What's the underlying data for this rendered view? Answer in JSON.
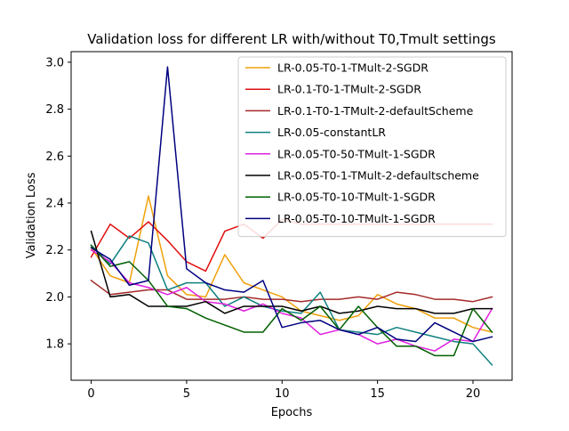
{
  "chart_data": {
    "type": "line",
    "title": "Validation loss for different LR with/without T0,Tmult settings",
    "xlabel": "Epochs",
    "ylabel": "Validation Loss",
    "xlim": [
      -1.05,
      22.05
    ],
    "ylim": [
      1.645,
      3.045
    ],
    "xticks": [
      0,
      5,
      10,
      15,
      20
    ],
    "xtick_labels": [
      "0",
      "5",
      "10",
      "15",
      "20"
    ],
    "yticks": [
      1.8,
      2.0,
      2.2,
      2.4,
      2.6,
      2.8,
      3.0
    ],
    "ytick_labels": [
      "1.8",
      "2.0",
      "2.2",
      "2.4",
      "2.6",
      "2.8",
      "3.0"
    ],
    "grid": false,
    "legend_position": "top-right",
    "x": [
      0,
      1,
      2,
      3,
      4,
      5,
      6,
      7,
      8,
      9,
      10,
      11,
      12,
      13,
      14,
      15,
      16,
      17,
      18,
      19,
      20,
      21
    ],
    "series": [
      {
        "name": "LR-0.05-T0-1-TMult-2-SGDR",
        "color": "#f0a00a",
        "values": [
          2.21,
          2.09,
          2.06,
          2.43,
          2.09,
          2.01,
          2.0,
          2.18,
          2.06,
          2.03,
          2.0,
          1.94,
          1.92,
          1.9,
          1.92,
          2.01,
          1.97,
          1.95,
          1.91,
          1.91,
          1.87,
          1.85
        ]
      },
      {
        "name": "LR-0.1-T0-1-TMult-2-SGDR",
        "color": "#e01010",
        "values": [
          2.17,
          2.31,
          2.25,
          2.32,
          2.24,
          2.15,
          2.11,
          2.28,
          2.31,
          2.25,
          2.33,
          2.31,
          2.31,
          2.31,
          2.31,
          2.31,
          2.31,
          2.31,
          2.31,
          2.31,
          2.31,
          2.31
        ]
      },
      {
        "name": "LR-0.1-T0-1-TMult-2-defaultScheme",
        "color": "#a52a2a",
        "values": [
          2.07,
          2.01,
          2.02,
          2.03,
          2.03,
          1.99,
          1.99,
          1.99,
          2.0,
          1.99,
          1.99,
          1.98,
          1.99,
          1.99,
          2.0,
          1.99,
          2.02,
          2.01,
          1.99,
          1.99,
          1.98,
          2.0
        ]
      },
      {
        "name": "LR-0.05-constantLR",
        "color": "#108080",
        "values": [
          2.22,
          2.14,
          2.26,
          2.23,
          2.03,
          2.06,
          2.06,
          1.96,
          2.0,
          1.96,
          1.94,
          1.93,
          2.02,
          1.86,
          1.85,
          1.84,
          1.87,
          1.85,
          1.83,
          1.81,
          1.8,
          1.71
        ]
      },
      {
        "name": "LR-0.05-T0-50-TMult-1-SGDR",
        "color": "#e020e0",
        "values": [
          2.2,
          2.15,
          2.06,
          2.04,
          2.01,
          2.04,
          1.98,
          1.97,
          1.94,
          1.97,
          1.93,
          1.91,
          1.84,
          1.86,
          1.84,
          1.8,
          1.82,
          1.79,
          1.77,
          1.82,
          1.81,
          1.95
        ]
      },
      {
        "name": "LR-0.05-T0-1-TMult-2-defaultscheme",
        "color": "#000000",
        "values": [
          2.28,
          2.0,
          2.01,
          1.96,
          1.96,
          1.96,
          1.98,
          1.93,
          1.96,
          1.96,
          1.96,
          1.94,
          1.96,
          1.93,
          1.94,
          1.96,
          1.95,
          1.95,
          1.93,
          1.93,
          1.95,
          1.95
        ]
      },
      {
        "name": "LR-0.05-T0-10-TMult-1-SGDR",
        "color": "#006000",
        "values": [
          2.22,
          2.13,
          2.15,
          2.07,
          1.96,
          1.95,
          1.91,
          1.88,
          1.85,
          1.85,
          1.95,
          1.9,
          1.96,
          1.86,
          1.96,
          1.87,
          1.79,
          1.79,
          1.75,
          1.75,
          1.95,
          1.85
        ]
      },
      {
        "name": "LR-0.05-T0-10-TMult-1-SGDR",
        "color": "#00007f",
        "values": [
          2.21,
          2.16,
          2.05,
          2.07,
          2.98,
          2.12,
          2.06,
          2.03,
          2.02,
          2.07,
          1.87,
          1.89,
          1.9,
          1.86,
          1.84,
          1.87,
          1.82,
          1.81,
          1.89,
          1.85,
          1.81,
          1.83
        ]
      }
    ]
  }
}
